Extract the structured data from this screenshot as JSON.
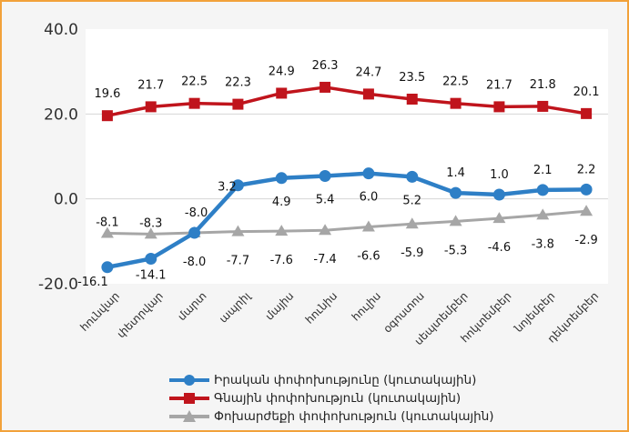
{
  "chart_data": {
    "type": "line",
    "categories": [
      "հունվար",
      "փետրվար",
      "մարտ",
      "ապրիլ",
      "մայիս",
      "հունիս",
      "հուլիս",
      "օգոստոս",
      "սեպտեմբեր",
      "հոկտեմբեր",
      "նոյեմբեր",
      "դեկտեմբեր"
    ],
    "ylim": [
      -20,
      40
    ],
    "yticks": [
      "40.0",
      "20.0",
      "0.0",
      "-20.0"
    ],
    "ytick_values": [
      40,
      20,
      0,
      -20
    ],
    "grid": true,
    "legend_position": "bottom",
    "series": [
      {
        "name": "Իրական փոփոխությունը (կուտակային)",
        "color": "#2e7fc6",
        "marker": "circle",
        "values": [
          -16.1,
          -14.1,
          -8.0,
          3.2,
          4.9,
          5.4,
          6.0,
          5.2,
          1.4,
          1.0,
          2.1,
          2.2
        ],
        "labels": [
          "-16.1",
          "-14.1",
          "-8.0",
          "3.2",
          "4.9",
          "5.4",
          "6.0",
          "5.2",
          "1.4",
          "1.0",
          "2.1",
          "2.2"
        ]
      },
      {
        "name": "Գնային փոփոխություն (կուտակային)",
        "color": "#c0141c",
        "marker": "square",
        "values": [
          19.6,
          21.7,
          22.5,
          22.3,
          24.9,
          26.3,
          24.7,
          23.5,
          22.5,
          21.7,
          21.8,
          20.1
        ],
        "labels": [
          "19.6",
          "21.7",
          "22.5",
          "22.3",
          "24.9",
          "26.3",
          "24.7",
          "23.5",
          "22.5",
          "21.7",
          "21.8",
          "20.1"
        ]
      },
      {
        "name": "Փոխարժեքի փոփոխություն (կուտակային)",
        "color": "#a6a6a6",
        "marker": "triangle",
        "values": [
          -8.1,
          -8.3,
          -8.0,
          -7.7,
          -7.6,
          -7.4,
          -6.6,
          -5.9,
          -5.3,
          -4.6,
          -3.8,
          -2.9
        ],
        "labels": [
          "-8.1",
          "-8.3",
          "-8.0",
          "-7.7",
          "-7.6",
          "-7.4",
          "-6.6",
          "-5.9",
          "-5.3",
          "-4.6",
          "-3.8",
          "-2.9"
        ]
      }
    ]
  }
}
